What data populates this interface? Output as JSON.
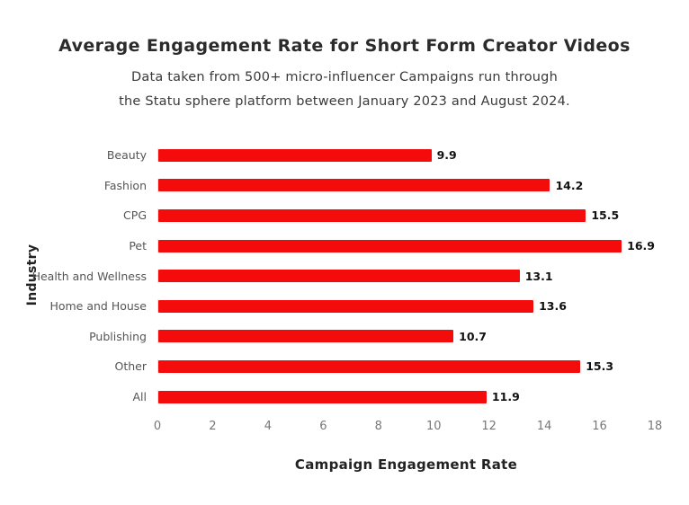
{
  "chart_data": {
    "type": "bar",
    "orientation": "horizontal",
    "title": "Average Engagement Rate for Short Form Creator Videos",
    "subtitle": [
      "Data taken from 500+ micro-influencer Campaigns run through",
      "the Statu sphere platform between January 2023 and August 2024."
    ],
    "categories": [
      "Beauty",
      "Fashion",
      "CPG",
      "Pet",
      "Health and Wellness",
      "Home and House",
      "Publishing",
      "Other",
      "All"
    ],
    "values": [
      9.9,
      14.2,
      15.5,
      16.9,
      13.1,
      13.6,
      10.7,
      15.3,
      11.9
    ],
    "xlabel": "Campaign Engagement Rate",
    "ylabel": "Industry",
    "xlim": [
      0,
      18
    ],
    "x_ticks": [
      0,
      2,
      4,
      6,
      8,
      10,
      12,
      14,
      16,
      18
    ],
    "bar_color": "#f40b0b",
    "grid": false,
    "legend": false
  }
}
